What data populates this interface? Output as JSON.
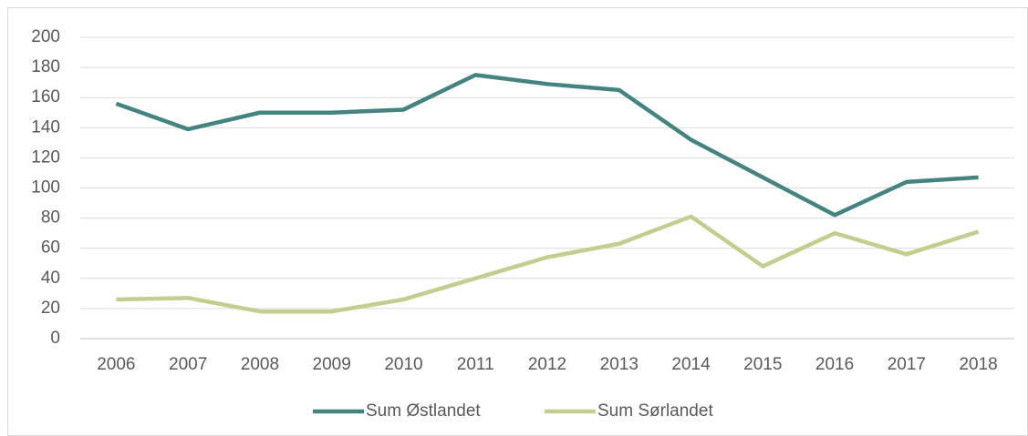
{
  "chart_data": {
    "type": "line",
    "categories": [
      "2006",
      "2007",
      "2008",
      "2009",
      "2010",
      "2011",
      "2012",
      "2013",
      "2014",
      "2015",
      "2016",
      "2017",
      "2018"
    ],
    "series": [
      {
        "name": "Sum Østlandet",
        "color": "#448480",
        "values": [
          156,
          139,
          150,
          150,
          152,
          175,
          169,
          165,
          132,
          107,
          82,
          104,
          107
        ]
      },
      {
        "name": "Sum Sørlandet",
        "color": "#c5cd8e",
        "values": [
          26,
          27,
          18,
          18,
          26,
          40,
          54,
          63,
          81,
          48,
          70,
          56,
          71
        ]
      }
    ],
    "ylim": [
      0,
      200
    ],
    "yticks": [
      0,
      20,
      40,
      60,
      80,
      100,
      120,
      140,
      160,
      180,
      200
    ],
    "grid": true,
    "legend": "bottom"
  }
}
